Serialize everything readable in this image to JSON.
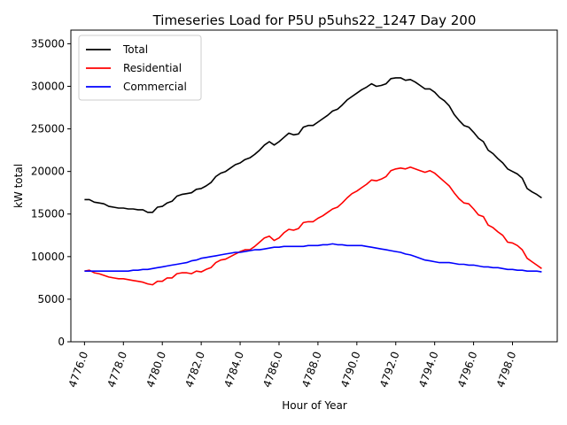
{
  "chart_data": {
    "type": "line",
    "title": "Timeseries Load for P5U p5uhs22_1247  Day 200",
    "xlabel": "Hour of Year",
    "ylabel": "kW total",
    "xlim": [
      4775.3,
      4800.3
    ],
    "ylim": [
      0,
      36600
    ],
    "xticks": [
      4776,
      4778,
      4780,
      4782,
      4784,
      4786,
      4788,
      4790,
      4792,
      4794,
      4796,
      4798
    ],
    "xtick_labels": [
      "4776.0",
      "4778.0",
      "4780.0",
      "4782.0",
      "4784.0",
      "4786.0",
      "4788.0",
      "4790.0",
      "4792.0",
      "4794.0",
      "4796.0",
      "4798.0"
    ],
    "yticks": [
      0,
      5000,
      10000,
      15000,
      20000,
      25000,
      30000,
      35000
    ],
    "ytick_labels": [
      "0",
      "5000",
      "10000",
      "15000",
      "20000",
      "25000",
      "30000",
      "35000"
    ],
    "grid": false,
    "legend_position": "upper-left",
    "x_start": 4776.0,
    "x_step": 0.25,
    "series": [
      {
        "name": "Total",
        "color": "#000000",
        "values": [
          16700,
          16700,
          16400,
          16300,
          16200,
          15900,
          15800,
          15700,
          15700,
          15600,
          15600,
          15500,
          15500,
          15200,
          15200,
          15800,
          15900,
          16300,
          16500,
          17100,
          17300,
          17400,
          17500,
          17900,
          18000,
          18300,
          18700,
          19400,
          19800,
          20000,
          20400,
          20800,
          21000,
          21400,
          21600,
          22000,
          22500,
          23100,
          23500,
          23100,
          23500,
          24000,
          24500,
          24300,
          24400,
          25200,
          25400,
          25400,
          25800,
          26200,
          26600,
          27100,
          27300,
          27800,
          28400,
          28800,
          29200,
          29600,
          29900,
          30300,
          30000,
          30100,
          30300,
          30900,
          31000,
          31000,
          30700,
          30800,
          30500,
          30100,
          29700,
          29700,
          29300,
          28700,
          28300,
          27700,
          26700,
          26000,
          25400,
          25200,
          24600,
          23900,
          23500,
          22500,
          22100,
          21500,
          21000,
          20300,
          20000,
          19700,
          19200,
          18000,
          17600,
          17300,
          16900
        ]
      },
      {
        "name": "Residential",
        "color": "#ff0000",
        "values": [
          8300,
          8400,
          8100,
          8000,
          7800,
          7600,
          7500,
          7400,
          7400,
          7300,
          7200,
          7100,
          7000,
          6800,
          6700,
          7100,
          7100,
          7500,
          7500,
          8000,
          8100,
          8100,
          8000,
          8300,
          8200,
          8500,
          8700,
          9300,
          9600,
          9700,
          10000,
          10300,
          10600,
          10800,
          10800,
          11200,
          11700,
          12200,
          12400,
          11900,
          12200,
          12800,
          13200,
          13100,
          13300,
          14000,
          14100,
          14100,
          14500,
          14800,
          15200,
          15600,
          15800,
          16300,
          16900,
          17400,
          17700,
          18100,
          18500,
          19000,
          18900,
          19100,
          19400,
          20100,
          20300,
          20400,
          20300,
          20500,
          20300,
          20100,
          19900,
          20100,
          19800,
          19300,
          18800,
          18300,
          17500,
          16800,
          16300,
          16200,
          15600,
          14900,
          14700,
          13700,
          13400,
          12900,
          12500,
          11700,
          11600,
          11300,
          10800,
          9800,
          9400,
          9000,
          8600
        ]
      },
      {
        "name": "Commercial",
        "color": "#0000ff",
        "values": [
          8300,
          8300,
          8300,
          8300,
          8300,
          8300,
          8300,
          8300,
          8300,
          8300,
          8400,
          8400,
          8500,
          8500,
          8600,
          8700,
          8800,
          8900,
          9000,
          9100,
          9200,
          9300,
          9500,
          9600,
          9800,
          9900,
          10000,
          10100,
          10200,
          10300,
          10400,
          10500,
          10500,
          10600,
          10700,
          10800,
          10800,
          10900,
          11000,
          11100,
          11100,
          11200,
          11200,
          11200,
          11200,
          11200,
          11300,
          11300,
          11300,
          11400,
          11400,
          11500,
          11400,
          11400,
          11300,
          11300,
          11300,
          11300,
          11200,
          11100,
          11000,
          10900,
          10800,
          10700,
          10600,
          10500,
          10300,
          10200,
          10000,
          9800,
          9600,
          9500,
          9400,
          9300,
          9300,
          9300,
          9200,
          9100,
          9100,
          9000,
          9000,
          8900,
          8800,
          8800,
          8700,
          8700,
          8600,
          8500,
          8500,
          8400,
          8400,
          8300,
          8300,
          8300,
          8200
        ]
      }
    ]
  }
}
